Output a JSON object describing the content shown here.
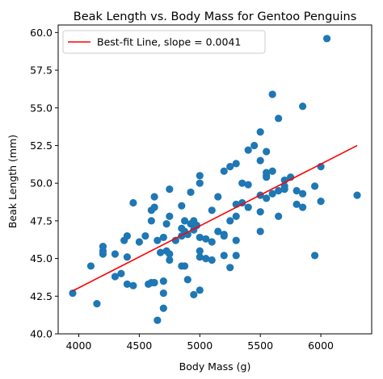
{
  "chart_data": {
    "type": "scatter",
    "title": "Beak Length vs. Body Mass for Gentoo Penguins",
    "xlabel": "Body Mass (g)",
    "ylabel": "Beak Length (mm)",
    "xlim": [
      3830,
      6420
    ],
    "ylim": [
      40.0,
      60.5
    ],
    "xticks": [
      4000,
      4500,
      5000,
      5500,
      6000
    ],
    "xtick_labels": [
      "4000",
      "4500",
      "5000",
      "5500",
      "6000"
    ],
    "yticks": [
      40.0,
      42.5,
      45.0,
      47.5,
      50.0,
      52.5,
      55.0,
      57.5,
      60.0
    ],
    "ytick_labels": [
      "40.0",
      "42.5",
      "45.0",
      "47.5",
      "50.0",
      "52.5",
      "55.0",
      "57.5",
      "60.0"
    ],
    "grid": false,
    "legend_position": "top-left",
    "colors": {
      "points": "#1f77b4",
      "fit_line": "#ff0000",
      "axes": "#000000"
    },
    "series": [
      {
        "kind": "points",
        "points": [
          [
            3950,
            42.7
          ],
          [
            4100,
            44.5
          ],
          [
            4150,
            42.0
          ],
          [
            4200,
            45.3
          ],
          [
            4200,
            45.5
          ],
          [
            4200,
            45.8
          ],
          [
            4300,
            43.8
          ],
          [
            4300,
            45.3
          ],
          [
            4350,
            44.0
          ],
          [
            4375,
            46.2
          ],
          [
            4400,
            43.3
          ],
          [
            4400,
            45.1
          ],
          [
            4400,
            46.5
          ],
          [
            4450,
            43.2
          ],
          [
            4450,
            48.7
          ],
          [
            4500,
            46.1
          ],
          [
            4550,
            46.5
          ],
          [
            4575,
            43.3
          ],
          [
            4600,
            43.4
          ],
          [
            4600,
            47.5
          ],
          [
            4600,
            48.2
          ],
          [
            4625,
            43.4
          ],
          [
            4625,
            48.4
          ],
          [
            4625,
            49.1
          ],
          [
            4650,
            40.9
          ],
          [
            4650,
            46.2
          ],
          [
            4675,
            45.4
          ],
          [
            4700,
            41.7
          ],
          [
            4700,
            42.7
          ],
          [
            4700,
            43.5
          ],
          [
            4700,
            46.4
          ],
          [
            4725,
            45.5
          ],
          [
            4725,
            47.3
          ],
          [
            4750,
            44.9
          ],
          [
            4750,
            45.3
          ],
          [
            4750,
            47.8
          ],
          [
            4750,
            49.6
          ],
          [
            4800,
            46.2
          ],
          [
            4850,
            44.5
          ],
          [
            4850,
            46.5
          ],
          [
            4850,
            47.0
          ],
          [
            4850,
            48.5
          ],
          [
            4875,
            44.5
          ],
          [
            4875,
            46.8
          ],
          [
            4875,
            47.5
          ],
          [
            4900,
            43.6
          ],
          [
            4900,
            46.6
          ],
          [
            4925,
            47.3
          ],
          [
            4925,
            49.4
          ],
          [
            4950,
            42.6
          ],
          [
            4950,
            46.9
          ],
          [
            4950,
            47.5
          ],
          [
            4975,
            47.2
          ],
          [
            5000,
            42.9
          ],
          [
            5000,
            45.1
          ],
          [
            5000,
            45.5
          ],
          [
            5000,
            46.4
          ],
          [
            5000,
            50.0
          ],
          [
            5000,
            50.5
          ],
          [
            5050,
            45.0
          ],
          [
            5050,
            46.3
          ],
          [
            5100,
            44.9
          ],
          [
            5100,
            46.1
          ],
          [
            5100,
            48.2
          ],
          [
            5150,
            49.1
          ],
          [
            5150,
            46.8
          ],
          [
            5200,
            45.2
          ],
          [
            5200,
            46.6
          ],
          [
            5200,
            46.5
          ],
          [
            5200,
            50.8
          ],
          [
            5250,
            44.4
          ],
          [
            5250,
            47.5
          ],
          [
            5250,
            51.1
          ],
          [
            5300,
            45.2
          ],
          [
            5300,
            46.2
          ],
          [
            5300,
            47.8
          ],
          [
            5300,
            48.6
          ],
          [
            5300,
            51.3
          ],
          [
            5350,
            48.7
          ],
          [
            5350,
            50.0
          ],
          [
            5400,
            48.4
          ],
          [
            5400,
            49.9
          ],
          [
            5400,
            52.2
          ],
          [
            5450,
            52.5
          ],
          [
            5500,
            46.8
          ],
          [
            5500,
            48.1
          ],
          [
            5500,
            49.2
          ],
          [
            5500,
            51.5
          ],
          [
            5500,
            53.4
          ],
          [
            5550,
            49.0
          ],
          [
            5550,
            50.4
          ],
          [
            5550,
            50.5
          ],
          [
            5550,
            50.7
          ],
          [
            5550,
            52.1
          ],
          [
            5600,
            49.3
          ],
          [
            5600,
            50.8
          ],
          [
            5600,
            55.9
          ],
          [
            5650,
            47.8
          ],
          [
            5650,
            49.5
          ],
          [
            5650,
            54.3
          ],
          [
            5700,
            49.8
          ],
          [
            5700,
            50.2
          ],
          [
            5700,
            49.6
          ],
          [
            5750,
            50.4
          ],
          [
            5800,
            48.6
          ],
          [
            5800,
            49.5
          ],
          [
            5850,
            48.4
          ],
          [
            5850,
            49.3
          ],
          [
            5850,
            55.1
          ],
          [
            5950,
            45.2
          ],
          [
            5950,
            49.8
          ],
          [
            6000,
            48.8
          ],
          [
            6000,
            51.1
          ],
          [
            6050,
            59.6
          ],
          [
            6300,
            49.2
          ]
        ]
      },
      {
        "kind": "line",
        "name": "Best-fit Line, slope = 0.0041",
        "x": [
          3950,
          6300
        ],
        "y": [
          42.85,
          52.5
        ]
      }
    ]
  }
}
